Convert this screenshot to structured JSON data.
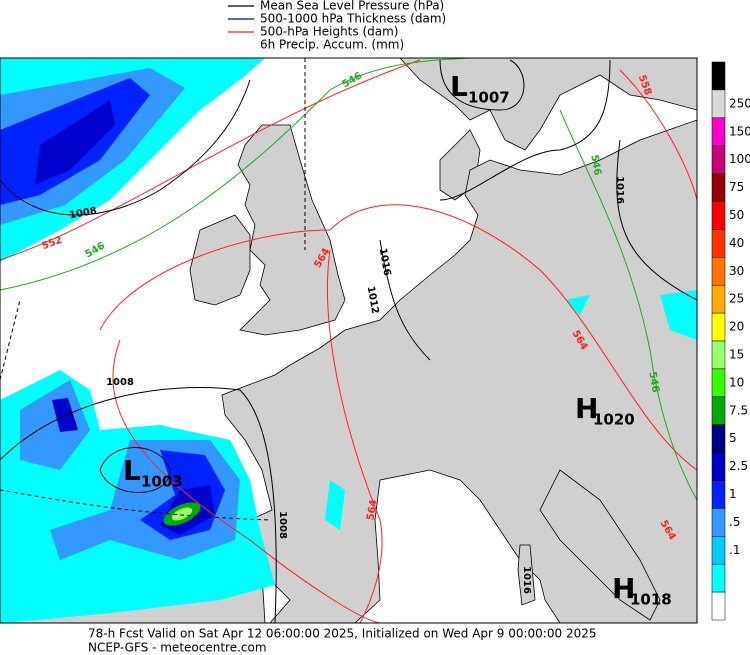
{
  "legend": [
    {
      "label": "Mean Sea Level Pressure (hPa)",
      "color": "#000000"
    },
    {
      "label": "500-1000 hPa Thickness (dam)",
      "color": "#0000cc"
    },
    {
      "label": "500-hPa Heights (dam)",
      "color": "#ff2222"
    },
    {
      "label": "6h Precip. Accum. (mm)",
      "color": null
    }
  ],
  "colorbar": {
    "labels": [
      "250",
      "150",
      "100",
      "75",
      "50",
      "40",
      "30",
      "25",
      "20",
      "15",
      "10",
      "7.5",
      "5",
      "2.5",
      "1",
      ".5",
      ".1"
    ],
    "colors": [
      "#000000",
      "#d9d9d9",
      "#ff00cc",
      "#cc0077",
      "#990000",
      "#ff0000",
      "#ff3300",
      "#ff7700",
      "#ffaa00",
      "#ffff00",
      "#99ff66",
      "#33ff00",
      "#00aa00",
      "#000080",
      "#0000cc",
      "#0022ff",
      "#3399ff",
      "#00ccff",
      "#00ffff",
      "#ffffff"
    ]
  },
  "centers": [
    {
      "letter": "L",
      "value": "1007"
    },
    {
      "letter": "H",
      "value": "1020"
    },
    {
      "letter": "L",
      "value": "1003"
    },
    {
      "letter": "H",
      "value": "1018"
    }
  ],
  "contour_labels": [
    {
      "text": "546",
      "color": "#22aa22"
    },
    {
      "text": "546",
      "color": "#22aa22"
    },
    {
      "text": "546",
      "color": "#22aa22"
    },
    {
      "text": "546",
      "color": "#22aa22"
    },
    {
      "text": "552",
      "color": "#ff2222"
    },
    {
      "text": "558",
      "color": "#ff2222"
    },
    {
      "text": "564",
      "color": "#ff2222"
    },
    {
      "text": "564",
      "color": "#ff2222"
    },
    {
      "text": "564",
      "color": "#ff2222"
    },
    {
      "text": "564",
      "color": "#ff2222"
    },
    {
      "text": "1008",
      "color": "#000000"
    },
    {
      "text": "1008",
      "color": "#000000"
    },
    {
      "text": "1008",
      "color": "#000000"
    },
    {
      "text": "1016",
      "color": "#000000"
    },
    {
      "text": "1016",
      "color": "#000000"
    },
    {
      "text": "1016",
      "color": "#000000"
    },
    {
      "text": "1012",
      "color": "#000000"
    }
  ],
  "footer": [
    "78-h Fcst Valid on Sat Apr 12 06:00:00 2025, Initialized on Wed Apr  9 00:00:00 2025",
    "NCEP-GFS - meteocentre.com"
  ]
}
